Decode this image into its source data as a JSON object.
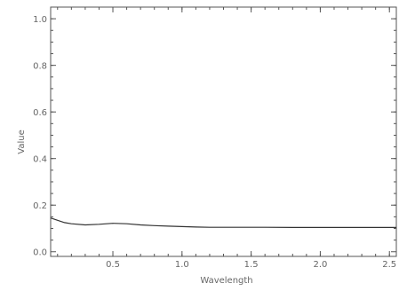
{
  "chart_data": {
    "type": "line",
    "title": "",
    "xlabel": "Wavelength",
    "ylabel": "Value",
    "xlim": [
      0.05,
      2.55
    ],
    "ylim": [
      -0.02,
      1.05
    ],
    "x_ticks": [
      0.5,
      1.0,
      1.5,
      2.0,
      2.5
    ],
    "x_tick_labels": [
      "0.5",
      "1.0",
      "1.5",
      "2.0",
      "2.5"
    ],
    "y_ticks": [
      0.0,
      0.2,
      0.4,
      0.6,
      0.8,
      1.0
    ],
    "y_tick_labels": [
      "0.0",
      "0.2",
      "0.4",
      "0.6",
      "0.8",
      "1.0"
    ],
    "grid": false,
    "colors": {
      "line": "#333333",
      "axis": "#555555",
      "text": "#666666"
    },
    "series": [
      {
        "x": [
          0.05,
          0.1,
          0.15,
          0.2,
          0.3,
          0.4,
          0.5,
          0.6,
          0.7,
          0.8,
          0.9,
          1.0,
          1.1,
          1.2,
          1.4,
          1.6,
          1.8,
          2.0,
          2.2,
          2.4,
          2.55
        ],
        "y": [
          0.145,
          0.135,
          0.125,
          0.12,
          0.115,
          0.118,
          0.122,
          0.12,
          0.115,
          0.112,
          0.11,
          0.108,
          0.106,
          0.105,
          0.105,
          0.105,
          0.104,
          0.104,
          0.104,
          0.104,
          0.104
        ]
      }
    ]
  }
}
